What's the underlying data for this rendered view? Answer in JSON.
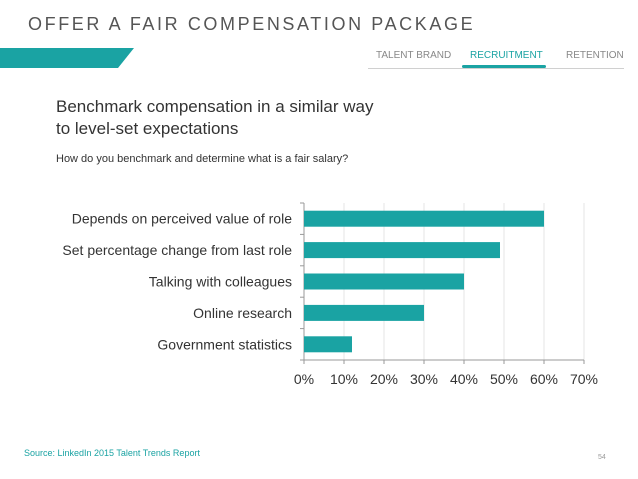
{
  "header": {
    "title": "OFFER A FAIR COMPENSATION PACKAGE",
    "accent_color": "#1aa3a3"
  },
  "nav": {
    "tabs": [
      {
        "label": "TALENT BRAND",
        "active": false
      },
      {
        "label": "RECRUITMENT",
        "active": true
      },
      {
        "label": "RETENTION",
        "active": false
      }
    ]
  },
  "headline": {
    "line1": "Benchmark compensation in a similar way",
    "line2": "to level-set expectations"
  },
  "subtitle": "How do you benchmark and determine what is a fair salary?",
  "chart_data": {
    "type": "bar",
    "orientation": "horizontal",
    "categories": [
      "Depends on perceived value of role",
      "Set percentage change from last role",
      "Talking with colleagues",
      "Online research",
      "Government statistics"
    ],
    "values": [
      60,
      49,
      40,
      30,
      12
    ],
    "xlim": [
      0,
      70
    ],
    "xticks": [
      "0%",
      "10%",
      "20%",
      "30%",
      "40%",
      "50%",
      "60%",
      "70%"
    ],
    "bar_color": "#1aa3a3",
    "grid": true
  },
  "footer": {
    "source": "Source: LinkedIn 2015 Talent Trends Report",
    "page_number": "54"
  }
}
